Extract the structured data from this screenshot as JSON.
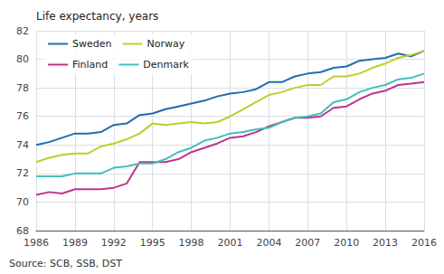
{
  "chart_data": {
    "type": "line",
    "ylabel": "Life expectancy, years",
    "source": "Source: SCB, SSB, DST",
    "x": [
      1986,
      1987,
      1988,
      1989,
      1990,
      1991,
      1992,
      1993,
      1994,
      1995,
      1996,
      1997,
      1998,
      1999,
      2000,
      2001,
      2002,
      2003,
      2004,
      2005,
      2006,
      2007,
      2008,
      2009,
      2010,
      2011,
      2012,
      2013,
      2014,
      2015,
      2016
    ],
    "series": [
      {
        "name": "Sweden",
        "color": "#1F6CB0",
        "values": [
          74.0,
          74.2,
          74.5,
          74.8,
          74.8,
          74.9,
          75.4,
          75.5,
          76.1,
          76.2,
          76.5,
          76.7,
          76.9,
          77.1,
          77.4,
          77.6,
          77.7,
          77.9,
          78.4,
          78.4,
          78.8,
          79.0,
          79.1,
          79.4,
          79.5,
          79.9,
          80.0,
          80.1,
          80.4,
          80.2,
          80.6
        ]
      },
      {
        "name": "Norway",
        "color": "#BECE2C",
        "values": [
          72.8,
          73.1,
          73.3,
          73.4,
          73.4,
          73.9,
          74.1,
          74.4,
          74.8,
          75.5,
          75.4,
          75.5,
          75.6,
          75.5,
          75.6,
          76.0,
          76.5,
          77.0,
          77.5,
          77.7,
          78.0,
          78.2,
          78.2,
          78.8,
          78.8,
          79.0,
          79.4,
          79.7,
          80.1,
          80.3,
          80.6
        ]
      },
      {
        "name": "Finland",
        "color": "#C0328C",
        "values": [
          70.5,
          70.7,
          70.6,
          70.9,
          70.9,
          70.9,
          71.0,
          71.3,
          72.8,
          72.8,
          72.8,
          73.0,
          73.5,
          73.8,
          74.1,
          74.5,
          74.6,
          74.9,
          75.3,
          75.6,
          75.9,
          75.9,
          76.0,
          76.6,
          76.7,
          77.2,
          77.6,
          77.8,
          78.2,
          78.3,
          78.4
        ]
      },
      {
        "name": "Denmark",
        "color": "#3FBFBF",
        "values": [
          71.8,
          71.8,
          71.8,
          72.0,
          72.0,
          72.0,
          72.4,
          72.5,
          72.7,
          72.7,
          73.0,
          73.5,
          73.8,
          74.3,
          74.5,
          74.8,
          74.9,
          75.1,
          75.2,
          75.6,
          75.9,
          76.0,
          76.2,
          77.0,
          77.2,
          77.7,
          78.0,
          78.2,
          78.6,
          78.7,
          79.0
        ]
      }
    ],
    "xlim": [
      1986,
      2016
    ],
    "xticks": [
      1986,
      1989,
      1992,
      1995,
      1998,
      2001,
      2004,
      2007,
      2010,
      2013,
      2016
    ],
    "ylim": [
      68,
      82
    ],
    "yticks": [
      68,
      70,
      72,
      74,
      76,
      78,
      80,
      82
    ],
    "grid": true,
    "legend": "upper left"
  }
}
